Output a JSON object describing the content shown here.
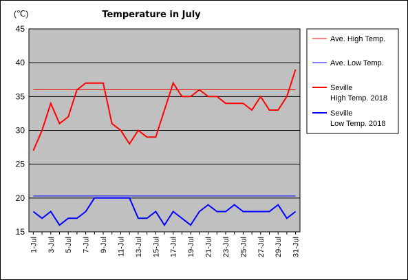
{
  "chart_data": {
    "type": "line",
    "title": "Temperature in July",
    "unit_label": "(℃)",
    "ylim": [
      15,
      45
    ],
    "y_ticks": [
      15,
      20,
      25,
      30,
      35,
      40,
      45
    ],
    "x_tick_labels": [
      "1-Jul",
      "3-Jul",
      "5-Jul",
      "7-Jul",
      "9-Jul",
      "11-Jul",
      "13-Jul",
      "15-Jul",
      "17-Jul",
      "19-Jul",
      "21-Jul",
      "23-Jul",
      "25-Jul",
      "27-Jul",
      "29-Jul",
      "31-Jul"
    ],
    "x": [
      1,
      2,
      3,
      4,
      5,
      6,
      7,
      8,
      9,
      10,
      11,
      12,
      13,
      14,
      15,
      16,
      17,
      18,
      19,
      20,
      21,
      22,
      23,
      24,
      25,
      26,
      27,
      28,
      29,
      30,
      31
    ],
    "grid": true,
    "legend_position": "right",
    "series": [
      {
        "name": "Ave. High Temp.",
        "color": "#ff0000",
        "width": 1,
        "values": [
          36,
          36,
          36,
          36,
          36,
          36,
          36,
          36,
          36,
          36,
          36,
          36,
          36,
          36,
          36,
          36,
          36,
          36,
          36,
          36,
          36,
          36,
          36,
          36,
          36,
          36,
          36,
          36,
          36,
          36,
          36
        ]
      },
      {
        "name": "Ave. Low Temp.",
        "color": "#0000ff",
        "width": 1,
        "values": [
          20.3,
          20.3,
          20.3,
          20.3,
          20.3,
          20.3,
          20.3,
          20.3,
          20.3,
          20.3,
          20.3,
          20.3,
          20.3,
          20.3,
          20.3,
          20.3,
          20.3,
          20.3,
          20.3,
          20.3,
          20.3,
          20.3,
          20.3,
          20.3,
          20.3,
          20.3,
          20.3,
          20.3,
          20.3,
          20.3,
          20.3
        ]
      },
      {
        "name": "Seville\nHigh Temp. 2018",
        "color": "#ff0000",
        "width": 2,
        "values": [
          27,
          30,
          34,
          31,
          32,
          36,
          37,
          37,
          37,
          31,
          30,
          28,
          30,
          29,
          29,
          33,
          37,
          35,
          35,
          36,
          35,
          35,
          34,
          34,
          34,
          33,
          35,
          33,
          33,
          35,
          39
        ]
      },
      {
        "name": "Seville\nLow Temp. 2018",
        "color": "#0000ff",
        "width": 2,
        "values": [
          18,
          17,
          18,
          16,
          17,
          17,
          18,
          20,
          20,
          20,
          20,
          20,
          17,
          17,
          18,
          16,
          18,
          17,
          16,
          18,
          19,
          18,
          18,
          19,
          18,
          18,
          18,
          18,
          19,
          17,
          18
        ]
      }
    ]
  }
}
